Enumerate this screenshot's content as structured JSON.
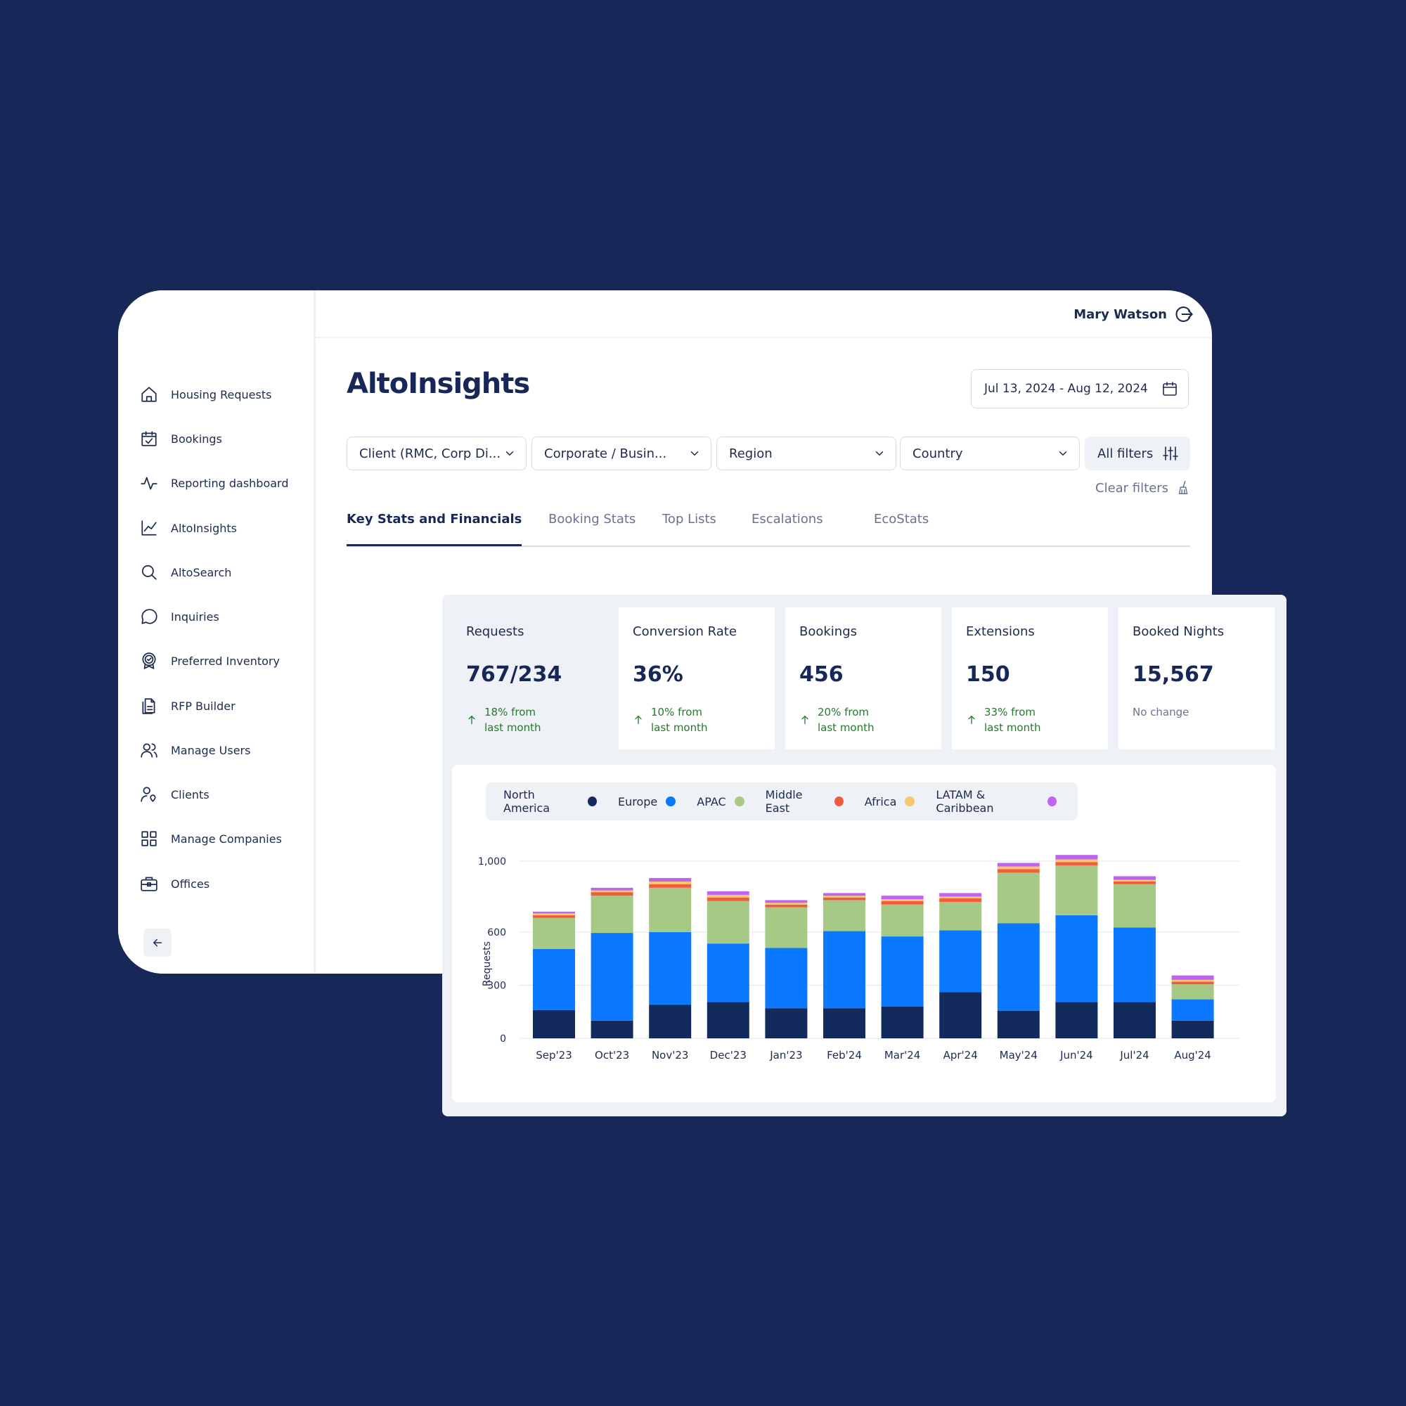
{
  "user": {
    "name": "Mary Watson"
  },
  "page": {
    "title": "AltoInsights"
  },
  "date_range": "Jul 13, 2024 - Aug 12, 2024",
  "sidebar": {
    "items": [
      {
        "label": "Housing Requests",
        "icon": "home-icon"
      },
      {
        "label": "Bookings",
        "icon": "calendar-check-icon"
      },
      {
        "label": "Reporting dashboard",
        "icon": "pulse-icon"
      },
      {
        "label": "AltoInsights",
        "icon": "line-chart-icon"
      },
      {
        "label": "AltoSearch",
        "icon": "search-icon"
      },
      {
        "label": "Inquiries",
        "icon": "chat-bubble-icon"
      },
      {
        "label": "Preferred Inventory",
        "icon": "badge-check-icon"
      },
      {
        "label": "RFP Builder",
        "icon": "document-icon"
      },
      {
        "label": "Manage Users",
        "icon": "users-icon"
      },
      {
        "label": "Clients",
        "icon": "user-pin-icon"
      },
      {
        "label": "Manage Companies",
        "icon": "grid-icon"
      },
      {
        "label": "Offices",
        "icon": "briefcase-icon"
      }
    ]
  },
  "filters": {
    "client": "Client (RMC, Corp Di...",
    "corporate": "Corporate / Busin...",
    "region": "Region",
    "country": "Country",
    "all_filters": "All filters",
    "clear_filters": "Clear filters"
  },
  "tabs": [
    {
      "label": "Key Stats and Financials",
      "active": true
    },
    {
      "label": "Booking Stats",
      "active": false
    },
    {
      "label": "Top Lists",
      "active": false
    },
    {
      "label": "Escalations",
      "active": false
    },
    {
      "label": "EcoStats",
      "active": false
    }
  ],
  "stats": [
    {
      "label": "Requests",
      "value": "767/234",
      "change_line1": "18% from",
      "change_line2": "last month",
      "trend": "up"
    },
    {
      "label": "Conversion Rate",
      "value": "36%",
      "change_line1": "10%  from",
      "change_line2": "last month",
      "trend": "up"
    },
    {
      "label": "Bookings",
      "value": "456",
      "change_line1": "20% from",
      "change_line2": "last month",
      "trend": "up"
    },
    {
      "label": "Extensions",
      "value": "150",
      "change_line1": "33% from",
      "change_line2": "last month",
      "trend": "up"
    },
    {
      "label": "Booked Nights",
      "value": "15,567",
      "change_line1": "No change",
      "change_line2": "",
      "trend": "none"
    }
  ],
  "chart_data": {
    "type": "bar",
    "stacked": true,
    "ylabel": "Requests",
    "yticks": [
      "0",
      "300",
      "600",
      "1,000"
    ],
    "ylim": [
      0,
      1000
    ],
    "categories": [
      "Sep'23",
      "Oct'23",
      "Nov'23",
      "Dec'23",
      "Jan'23",
      "Feb'24",
      "Mar'24",
      "Apr'24",
      "May'24",
      "Jun'24",
      "Jul'24",
      "Aug'24"
    ],
    "series": [
      {
        "name": "North America",
        "color": "#132a5c",
        "values": [
          160,
          100,
          190,
          205,
          170,
          170,
          180,
          260,
          155,
          205,
          205,
          100
        ]
      },
      {
        "name": "Europe",
        "color": "#0a78ff",
        "values": [
          345,
          495,
          410,
          330,
          340,
          435,
          395,
          350,
          495,
          490,
          420,
          120
        ]
      },
      {
        "name": "APAC",
        "color": "#a6c985",
        "values": [
          175,
          210,
          250,
          240,
          230,
          175,
          180,
          160,
          285,
          280,
          245,
          85
        ]
      },
      {
        "name": "Middle East",
        "color": "#f05d3c",
        "values": [
          15,
          20,
          20,
          20,
          15,
          15,
          20,
          20,
          20,
          20,
          15,
          15
        ]
      },
      {
        "name": "Africa",
        "color": "#f5c86a",
        "values": [
          10,
          10,
          15,
          15,
          10,
          10,
          10,
          10,
          15,
          15,
          10,
          10
        ]
      },
      {
        "name": "LATAM & Caribbean",
        "color": "#c063f0",
        "values": [
          10,
          15,
          20,
          20,
          15,
          15,
          20,
          20,
          20,
          25,
          20,
          25
        ]
      }
    ],
    "legend_position": "top-left",
    "grid": true
  }
}
